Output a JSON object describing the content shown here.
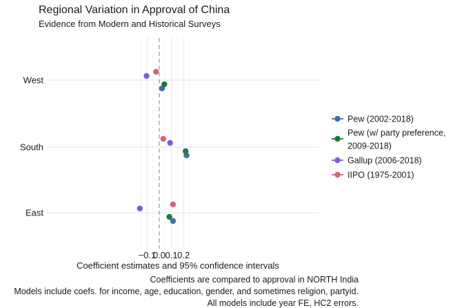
{
  "chart_data": {
    "type": "scatter",
    "title": "Regional Variation in Approval of China",
    "subtitle": "Evidence from Modern and Historical Surveys",
    "xlabel": "Coefficient estimates and 95% confidence intervals",
    "ylabel": "",
    "xlim": [
      -0.175,
      0.265
    ],
    "xticks": [
      -0.1,
      0.0,
      0.1,
      0.2
    ],
    "xtick_labels": [
      "−0.1",
      "0.0",
      "0.1",
      "0.2"
    ],
    "reference_line": 0,
    "categories": [
      "West",
      "South",
      "East"
    ],
    "legend_position": "right",
    "series": [
      {
        "name": "Pew (2002-2018)",
        "legend_lines": [
          "Pew (2002-2018)"
        ],
        "color": "#3e6fa6",
        "points": [
          {
            "region": "West",
            "estimate": 0.023,
            "ci": [
              0.011,
              0.036
            ]
          },
          {
            "region": "South",
            "estimate": 0.225,
            "ci": [
              0.211,
              0.239
            ]
          },
          {
            "region": "East",
            "estimate": 0.113,
            "ci": [
              0.099,
              0.127
            ]
          }
        ]
      },
      {
        "name": "Pew (w/ party preference, 2009-2018)",
        "legend_lines": [
          "Pew (w/ party preference,",
          "2009-2018)"
        ],
        "color": "#1f7a36",
        "points": [
          {
            "region": "West",
            "estimate": 0.042,
            "ci": [
              0.027,
              0.057
            ]
          },
          {
            "region": "South",
            "estimate": 0.217,
            "ci": [
              0.199,
              0.235
            ]
          },
          {
            "region": "East",
            "estimate": 0.083,
            "ci": [
              0.067,
              0.1
            ]
          }
        ]
      },
      {
        "name": "Gallup (2006-2018)",
        "legend_lines": [
          "Gallup (2006-2018)"
        ],
        "color": "#7b5fd6",
        "points": [
          {
            "region": "West",
            "estimate": -0.105,
            "ci": [
              -0.127,
              -0.083
            ]
          },
          {
            "region": "South",
            "estimate": 0.089,
            "ci": [
              0.068,
              0.11
            ]
          },
          {
            "region": "East",
            "estimate": -0.16,
            "ci": [
              -0.18,
              -0.14
            ]
          }
        ]
      },
      {
        "name": "IIPO (1975-2001)",
        "legend_lines": [
          "IIPO (1975-2001)"
        ],
        "color": "#d0677a",
        "points": [
          {
            "region": "West",
            "estimate": -0.026,
            "ci": [
              -0.037,
              -0.015
            ]
          },
          {
            "region": "South",
            "estimate": 0.033,
            "ci": [
              0.022,
              0.044
            ]
          },
          {
            "region": "East",
            "estimate": 0.113,
            "ci": [
              0.102,
              0.124
            ]
          }
        ]
      }
    ],
    "caption_lines": [
      "Coefficients are compared to approval in NORTH India",
      "Models include coefs. for income, age, education, gender, and sometimes religion, partyid.",
      "All models include year FE, HC2 errors."
    ]
  }
}
